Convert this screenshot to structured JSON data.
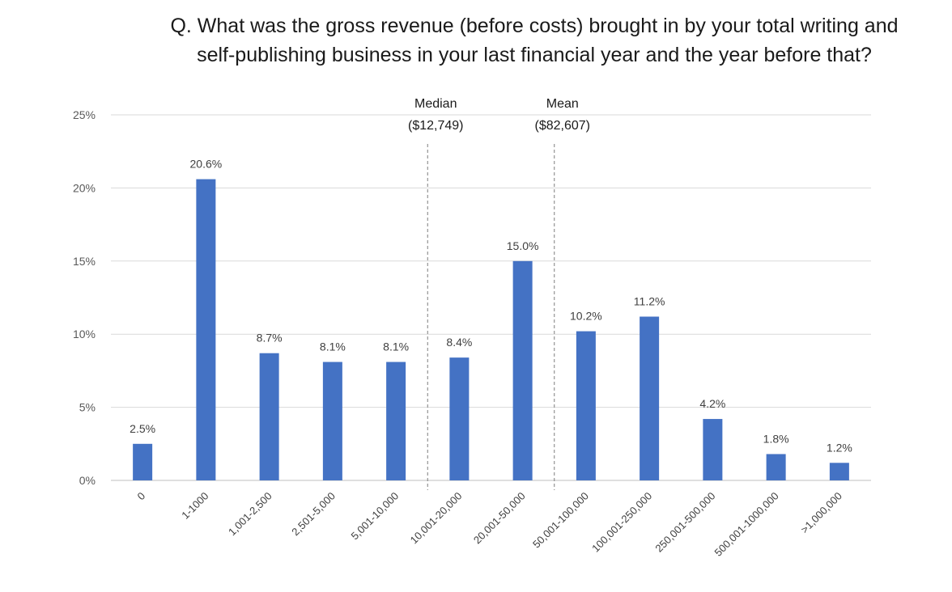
{
  "chart_data": {
    "type": "bar",
    "title_lines": [
      "Q. What was the gross revenue (before costs) brought in by your total writing and",
      "self-publishing business in your last financial year and the year before that?"
    ],
    "categories": [
      "0",
      "1-1000",
      "1,001-2,500",
      "2,501-5,000",
      "5,001-10,000",
      "10,001-20,000",
      "20,001-50,000",
      "50,001-100,000",
      "100,001-250,000",
      "250,001-500,000",
      "500,001-1000,000",
      ">1,000,000"
    ],
    "values": [
      2.5,
      20.6,
      8.7,
      8.1,
      8.1,
      8.4,
      15.0,
      10.2,
      11.2,
      4.2,
      1.8,
      1.2
    ],
    "data_labels": [
      "2.5%",
      "20.6%",
      "8.7%",
      "8.1%",
      "8.1%",
      "8.4%",
      "15.0%",
      "10.2%",
      "11.2%",
      "4.2%",
      "1.8%",
      "1.2%"
    ],
    "ylim": [
      0,
      25
    ],
    "yticks": [
      0,
      5,
      10,
      15,
      20,
      25
    ],
    "ytick_labels": [
      "0%",
      "5%",
      "10%",
      "15%",
      "20%",
      "25%"
    ],
    "grid": true,
    "bar_color": "#4472C4",
    "reference_lines": [
      {
        "label": "Median",
        "value_label": "($12,749)",
        "between": [
          4,
          5
        ]
      },
      {
        "label": "Mean",
        "value_label": "($82,607)",
        "between": [
          6,
          7
        ]
      }
    ]
  }
}
